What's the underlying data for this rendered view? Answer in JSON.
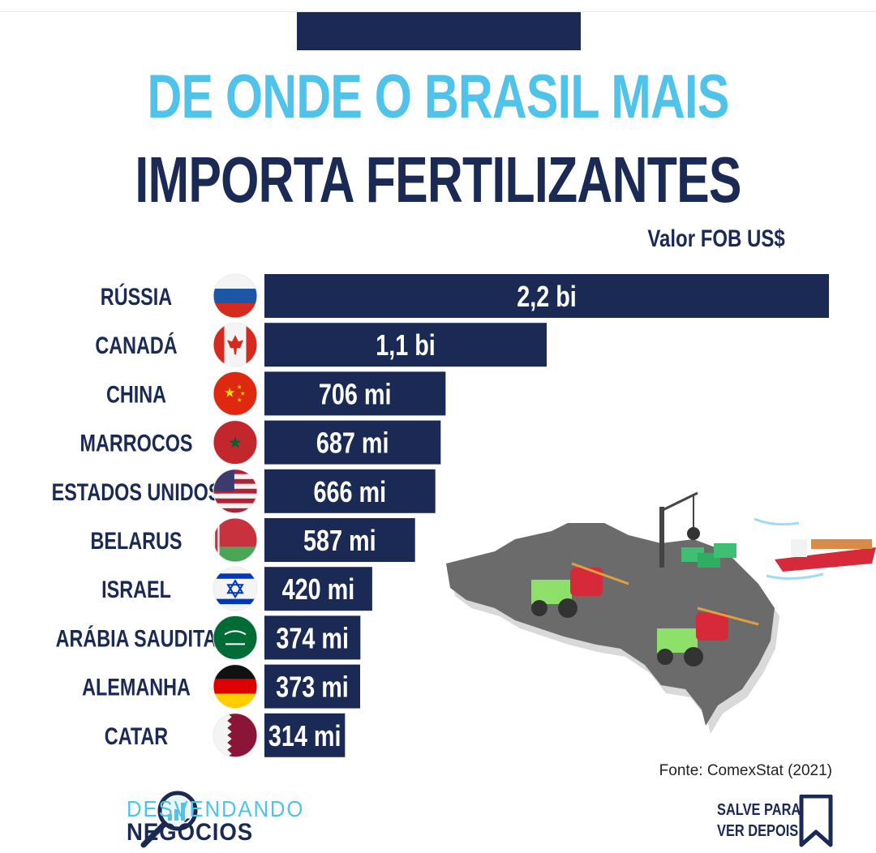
{
  "header": {
    "title_line1": "DE ONDE O BRASIL MAIS",
    "title_line2": "IMPORTA FERTILIZANTES",
    "unit": "Valor FOB US$"
  },
  "footer": {
    "source": "Fonte: ComexStat (2021)",
    "brand_line1": "DESVENDANDO",
    "brand_line2": "NEGÓCIOS",
    "save_line1": "SALVE PARA",
    "save_line2": "VER DEPOIS"
  },
  "colors": {
    "bar": "#1a2a55",
    "accent": "#4fc3ea",
    "map": "#6b6b6b"
  },
  "chart_data": {
    "type": "bar",
    "orientation": "horizontal",
    "title": "DE ONDE O BRASIL MAIS IMPORTA FERTILIZANTES",
    "unit": "Valor FOB US$",
    "categories": [
      "RÚSSIA",
      "CANADÁ",
      "CHINA",
      "MARROCOS",
      "ESTADOS UNIDOS",
      "BELARUS",
      "ISRAEL",
      "ARÁBIA SAUDITA",
      "ALEMANHA",
      "CATAR"
    ],
    "values": [
      2200,
      1100,
      706,
      687,
      666,
      587,
      420,
      374,
      373,
      314
    ],
    "value_units": "US$ milhões",
    "labels": [
      "2,2 bi",
      "1,1 bi",
      "706 mi",
      "687 mi",
      "666 mi",
      "587 mi",
      "420 mi",
      "374 mi",
      "373 mi",
      "314 mi"
    ],
    "flags": [
      "russia-flag-icon",
      "canada-flag-icon",
      "china-flag-icon",
      "morocco-flag-icon",
      "usa-flag-icon",
      "belarus-flag-icon",
      "israel-flag-icon",
      "saudi-arabia-flag-icon",
      "germany-flag-icon",
      "qatar-flag-icon"
    ],
    "xlim": [
      0,
      2200
    ]
  }
}
